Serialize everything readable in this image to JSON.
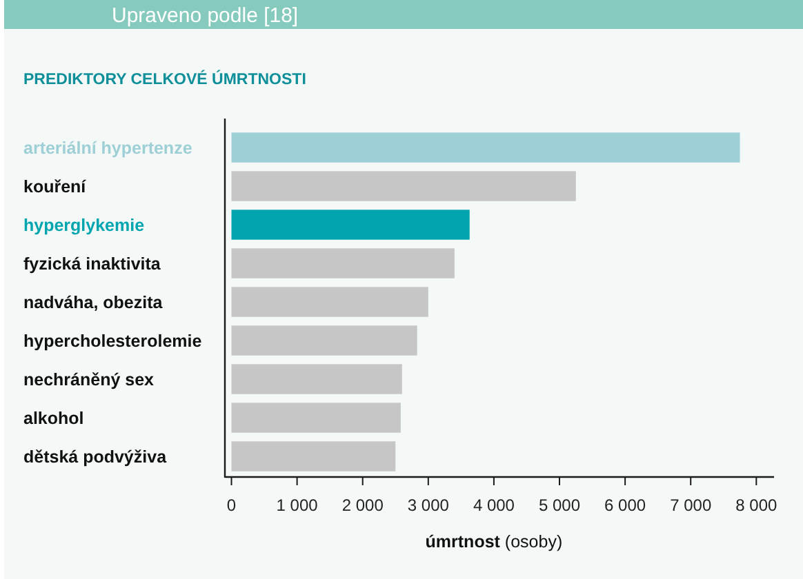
{
  "chart_data": {
    "type": "bar",
    "orientation": "horizontal",
    "title": "PREDIKTORY CELKOVÉ ÚMRTNOSTI",
    "xlabel": "úmrtnost (osoby)",
    "annotations": [
      "Upraveno podle [18]"
    ],
    "categories": [
      "arteriální hypertenze",
      "kouření",
      "hyperglykemie",
      "fyzická inaktivita",
      "nadváha, obezita",
      "hypercholesterolemie",
      "nechráněný sex",
      "alkohol",
      "dětská podvýživa"
    ],
    "values": [
      7750,
      5250,
      3630,
      3400,
      3000,
      2830,
      2600,
      2580,
      2500
    ],
    "colors": [
      "#9fcfd6",
      "#c6c6c6",
      "#00a5b0",
      "#c6c6c6",
      "#c6c6c6",
      "#c6c6c6",
      "#c6c6c6",
      "#c6c6c6",
      "#c6c6c6"
    ],
    "xlim": [
      -100,
      8270
    ],
    "xticks": [
      0,
      {
        "value": 1000,
        "label": "1 000"
      },
      {
        "value": 2000,
        "label": "2 000"
      },
      {
        "value": 3000,
        "label": "3 000"
      },
      {
        "value": 4000,
        "label": "4 000"
      },
      {
        "value": 5000,
        "label": "5 000"
      },
      {
        "value": 6000,
        "label": "6 000"
      },
      {
        "value": 7000,
        "label": "7 000"
      },
      {
        "value": 8000,
        "label": "8 000"
      }
    ]
  }
}
